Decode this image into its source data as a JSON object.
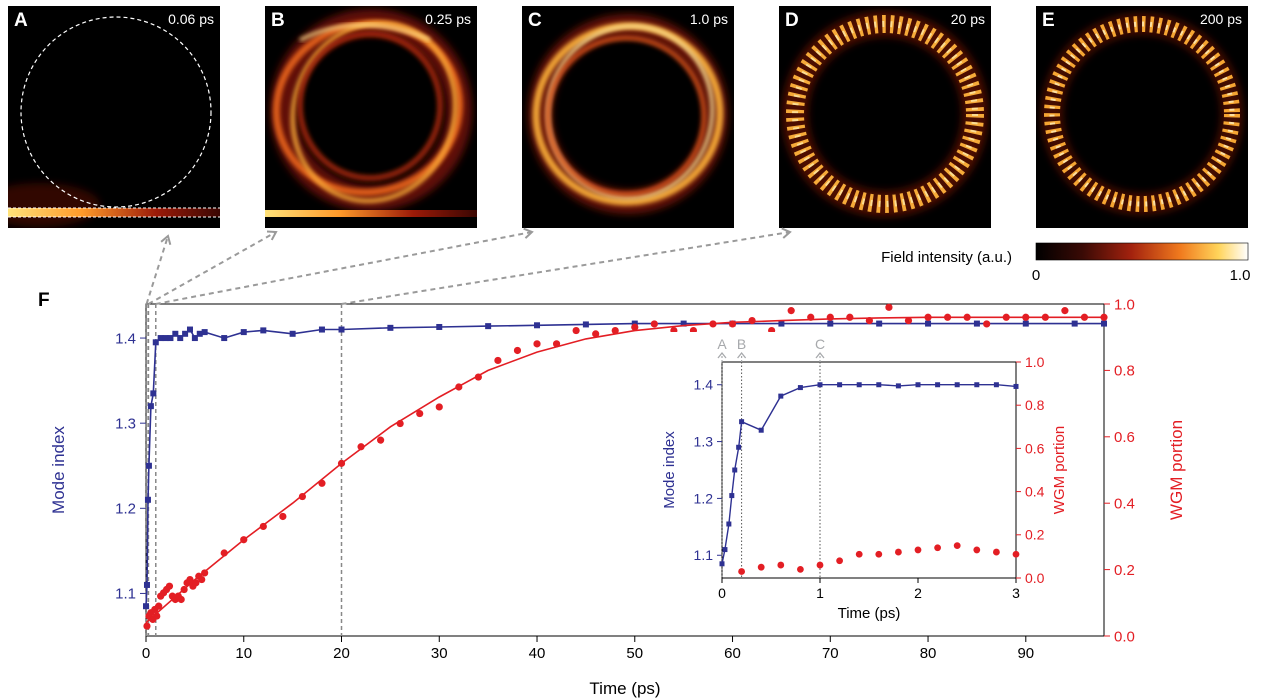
{
  "colors": {
    "blue": "#2e3192",
    "red": "#e31e24",
    "grey": "#a7a9ac",
    "black": "#000000"
  },
  "panels": [
    {
      "letter": "A",
      "time": "0.06 ps"
    },
    {
      "letter": "B",
      "time": "0.25 ps"
    },
    {
      "letter": "C",
      "time": "1.0 ps"
    },
    {
      "letter": "D",
      "time": "20 ps"
    },
    {
      "letter": "E",
      "time": "200 ps"
    }
  ],
  "colorbar": {
    "label": "Field intensity (a.u.)",
    "min_label": "0",
    "max_label": "1.0"
  },
  "chart_data": [
    {
      "panel": "F",
      "type": "line",
      "xlabel": "Time (ps)",
      "ylabel_left": "Mode index",
      "ylabel_right": "WGM portion",
      "xlim": [
        0,
        98
      ],
      "ylim_left": [
        1.05,
        1.44
      ],
      "ylim_right": [
        0.0,
        1.0
      ],
      "xticks": [
        "0",
        "10",
        "20",
        "30",
        "40",
        "50",
        "60",
        "70",
        "80",
        "90"
      ],
      "yticks_left": [
        "1.1",
        "1.2",
        "1.3",
        "1.4"
      ],
      "yticks_right": [
        "0.0",
        "0.2",
        "0.4",
        "0.6",
        "0.8",
        "1.0"
      ],
      "marker_times": [
        0.06,
        0.25,
        1.0,
        20
      ],
      "series": [
        {
          "axis": "left",
          "style": "line+square",
          "x": [
            0,
            0.1,
            0.2,
            0.3,
            0.5,
            0.75,
            1,
            1.5,
            2,
            2.5,
            3,
            3.5,
            4,
            4.5,
            5,
            5.5,
            6,
            8,
            10,
            12,
            15,
            18,
            20,
            25,
            30,
            35,
            40,
            45,
            50,
            55,
            60,
            65,
            70,
            75,
            80,
            85,
            90,
            95,
            98
          ],
          "y": [
            1.085,
            1.11,
            1.21,
            1.25,
            1.32,
            1.335,
            1.395,
            1.4,
            1.4,
            1.4,
            1.405,
            1.4,
            1.405,
            1.41,
            1.4,
            1.405,
            1.407,
            1.4,
            1.407,
            1.409,
            1.405,
            1.41,
            1.41,
            1.412,
            1.413,
            1.414,
            1.415,
            1.416,
            1.417,
            1.417,
            1.417,
            1.417,
            1.417,
            1.417,
            1.417,
            1.417,
            1.417,
            1.417,
            1.417
          ]
        },
        {
          "axis": "right",
          "style": "scatter",
          "x": [
            0.1,
            0.3,
            0.5,
            0.7,
            0.9,
            1.1,
            1.3,
            1.5,
            1.8,
            2.1,
            2.4,
            2.7,
            3.0,
            3.3,
            3.6,
            3.9,
            4.2,
            4.5,
            4.8,
            5.1,
            5.4,
            5.7,
            6,
            8,
            10,
            12,
            14,
            16,
            18,
            20,
            22,
            24,
            26,
            28,
            30,
            32,
            34,
            36,
            38,
            40,
            42,
            44,
            46,
            48,
            50,
            52,
            54,
            56,
            58,
            60,
            62,
            64,
            66,
            68,
            70,
            72,
            74,
            76,
            78,
            80,
            82,
            84,
            86,
            88,
            90,
            92,
            94,
            96,
            98
          ],
          "y": [
            0.03,
            0.06,
            0.07,
            0.05,
            0.08,
            0.06,
            0.09,
            0.12,
            0.13,
            0.14,
            0.15,
            0.12,
            0.11,
            0.12,
            0.11,
            0.14,
            0.16,
            0.17,
            0.15,
            0.16,
            0.18,
            0.17,
            0.19,
            0.25,
            0.29,
            0.33,
            0.36,
            0.42,
            0.46,
            0.52,
            0.57,
            0.59,
            0.64,
            0.67,
            0.69,
            0.75,
            0.78,
            0.83,
            0.86,
            0.88,
            0.88,
            0.92,
            0.91,
            0.92,
            0.93,
            0.94,
            0.92,
            0.92,
            0.94,
            0.94,
            0.95,
            0.92,
            0.98,
            0.96,
            0.96,
            0.96,
            0.95,
            0.99,
            0.95,
            0.96,
            0.96,
            0.96,
            0.94,
            0.96,
            0.96,
            0.96,
            0.98,
            0.96,
            0.96
          ]
        },
        {
          "axis": "right",
          "style": "line",
          "x": [
            0,
            5,
            10,
            15,
            20,
            25,
            30,
            35,
            40,
            45,
            50,
            55,
            60,
            65,
            70,
            75,
            80,
            85,
            90,
            95,
            98
          ],
          "y": [
            0.04,
            0.17,
            0.29,
            0.4,
            0.52,
            0.63,
            0.72,
            0.8,
            0.855,
            0.895,
            0.92,
            0.935,
            0.945,
            0.95,
            0.955,
            0.958,
            0.96,
            0.96,
            0.96,
            0.96,
            0.96
          ]
        }
      ]
    },
    {
      "panel": "F-inset",
      "type": "line",
      "xlabel": "Time (ps)",
      "ylabel_left": "Mode index",
      "ylabel_right": "WGM portion",
      "xlim": [
        0,
        3
      ],
      "ylim_left": [
        1.06,
        1.44
      ],
      "ylim_right": [
        0.0,
        1.0
      ],
      "xticks": [
        "0",
        "1",
        "2",
        "3"
      ],
      "yticks_left": [
        "1.1",
        "1.2",
        "1.3",
        "1.4"
      ],
      "yticks_right": [
        "0.0",
        "0.2",
        "0.4",
        "0.6",
        "0.8",
        "1.0"
      ],
      "markers": [
        {
          "label": "A",
          "x": 0.0
        },
        {
          "label": "B",
          "x": 0.2
        },
        {
          "label": "C",
          "x": 1.0
        }
      ],
      "series": [
        {
          "axis": "left",
          "style": "line+square",
          "x": [
            0.0,
            0.03,
            0.07,
            0.1,
            0.13,
            0.17,
            0.2,
            0.4,
            0.6,
            0.8,
            1.0,
            1.2,
            1.4,
            1.6,
            1.8,
            2.0,
            2.2,
            2.4,
            2.6,
            2.8,
            3.0
          ],
          "y": [
            1.085,
            1.11,
            1.155,
            1.205,
            1.25,
            1.29,
            1.335,
            1.32,
            1.38,
            1.395,
            1.4,
            1.4,
            1.4,
            1.4,
            1.398,
            1.4,
            1.4,
            1.4,
            1.4,
            1.4,
            1.397
          ]
        },
        {
          "axis": "right",
          "style": "scatter",
          "x": [
            0.2,
            0.4,
            0.6,
            0.8,
            1.0,
            1.2,
            1.4,
            1.6,
            1.8,
            2.0,
            2.2,
            2.4,
            2.6,
            2.8,
            3.0
          ],
          "y": [
            0.03,
            0.05,
            0.06,
            0.04,
            0.06,
            0.08,
            0.11,
            0.11,
            0.12,
            0.13,
            0.14,
            0.15,
            0.13,
            0.12,
            0.11
          ]
        }
      ]
    }
  ]
}
